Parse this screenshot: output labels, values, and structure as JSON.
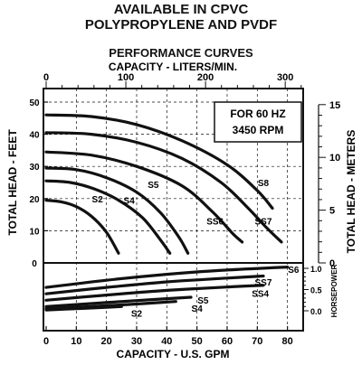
{
  "header": {
    "line1": "AVAILABLE IN CPVC",
    "line2": "POLYPROPYLENE AND PVDF",
    "chart_title": "PERFORMANCE CURVES"
  },
  "chart_data": {
    "type": "line",
    "title": "PERFORMANCE CURVES",
    "xlabel": "CAPACITY - U.S. GPM",
    "x2label": "CAPACITY - LITERS/MIN.",
    "ylabel": "TOTAL HEAD - FEET",
    "y2label": "TOTAL HEAD - METERS",
    "y3label": "HORSEPOWER",
    "xlim": [
      0,
      85
    ],
    "xticks": [
      "0",
      "10",
      "20",
      "30",
      "40",
      "50",
      "60",
      "70",
      "80"
    ],
    "x2ticks": [
      "0",
      "100",
      "200",
      "300"
    ],
    "ylim": [
      0,
      50
    ],
    "yticks": [
      "0",
      "10",
      "20",
      "30",
      "40",
      "50"
    ],
    "y2ticks": [
      "0",
      "5",
      "10",
      "15"
    ],
    "hp_ticks": [
      "0.0",
      "0.5",
      "1.0"
    ],
    "annotation": [
      "FOR 60 HZ",
      "3450 RPM"
    ],
    "head_series": [
      {
        "name": "S2",
        "points": [
          [
            0,
            19.5
          ],
          [
            5,
            19
          ],
          [
            10,
            17.5
          ],
          [
            15,
            14.5
          ],
          [
            20,
            9.5
          ],
          [
            24,
            3
          ]
        ]
      },
      {
        "name": "S4",
        "points": [
          [
            0,
            25.5
          ],
          [
            8,
            25
          ],
          [
            16,
            23
          ],
          [
            24,
            19.5
          ],
          [
            32,
            14
          ],
          [
            38,
            7
          ],
          [
            41,
            3
          ]
        ]
      },
      {
        "name": "S5",
        "points": [
          [
            0,
            29.5
          ],
          [
            10,
            29
          ],
          [
            20,
            26.5
          ],
          [
            30,
            22
          ],
          [
            38,
            15.5
          ],
          [
            44,
            8
          ],
          [
            47,
            3
          ]
        ]
      },
      {
        "name": "SS6",
        "points": [
          [
            0,
            34.5
          ],
          [
            15,
            33.5
          ],
          [
            30,
            30
          ],
          [
            45,
            24
          ],
          [
            55,
            16
          ],
          [
            62,
            9
          ],
          [
            65,
            6.5
          ]
        ]
      },
      {
        "name": "SS7",
        "points": [
          [
            0,
            40.5
          ],
          [
            15,
            40
          ],
          [
            30,
            37.5
          ],
          [
            45,
            32.5
          ],
          [
            58,
            25
          ],
          [
            67,
            17
          ],
          [
            73,
            11
          ],
          [
            78,
            6.5
          ]
        ]
      },
      {
        "name": "S8",
        "points": [
          [
            0,
            46
          ],
          [
            15,
            45.5
          ],
          [
            30,
            43
          ],
          [
            45,
            38
          ],
          [
            60,
            30.5
          ],
          [
            70,
            22.5
          ],
          [
            75,
            17
          ]
        ]
      }
    ],
    "hp_series": [
      {
        "name": "S2",
        "points": [
          [
            0,
            0.02
          ],
          [
            10,
            0.05
          ],
          [
            20,
            0.08
          ],
          [
            25,
            0.1
          ]
        ]
      },
      {
        "name": "S4",
        "points": [
          [
            0,
            0.05
          ],
          [
            15,
            0.1
          ],
          [
            30,
            0.16
          ],
          [
            43,
            0.22
          ]
        ]
      },
      {
        "name": "S5",
        "points": [
          [
            0,
            0.1
          ],
          [
            15,
            0.17
          ],
          [
            30,
            0.24
          ],
          [
            48,
            0.32
          ]
        ]
      },
      {
        "name": "SS4",
        "points": [
          [
            0,
            0.25
          ],
          [
            20,
            0.37
          ],
          [
            40,
            0.48
          ],
          [
            60,
            0.56
          ],
          [
            72,
            0.6
          ]
        ]
      },
      {
        "name": "SS7",
        "points": [
          [
            0,
            0.4
          ],
          [
            20,
            0.55
          ],
          [
            40,
            0.68
          ],
          [
            60,
            0.77
          ],
          [
            72,
            0.82
          ]
        ]
      },
      {
        "name": "S6",
        "points": [
          [
            0,
            0.55
          ],
          [
            20,
            0.72
          ],
          [
            40,
            0.86
          ],
          [
            60,
            0.96
          ],
          [
            80,
            1.03
          ]
        ]
      }
    ],
    "labels": {
      "head": [
        {
          "text": "S2",
          "x": 17,
          "y": 20
        },
        {
          "text": "S4",
          "x": 27.5,
          "y": 19.5
        },
        {
          "text": "S5",
          "x": 35.5,
          "y": 24.5
        },
        {
          "text": "SS6",
          "x": 56,
          "y": 13
        },
        {
          "text": "SS7",
          "x": 72,
          "y": 13
        },
        {
          "text": "S8",
          "x": 72,
          "y": 25
        }
      ],
      "hp": [
        {
          "text": "S2",
          "x": 30,
          "y": -0.05
        },
        {
          "text": "S4",
          "x": 50,
          "y": 0.06
        },
        {
          "text": "S5",
          "x": 52,
          "y": 0.26
        },
        {
          "text": "SS4",
          "x": 71,
          "y": 0.42
        },
        {
          "text": "SS7",
          "x": 72,
          "y": 0.68
        },
        {
          "text": "S6",
          "x": 82,
          "y": 0.98
        }
      ]
    }
  }
}
